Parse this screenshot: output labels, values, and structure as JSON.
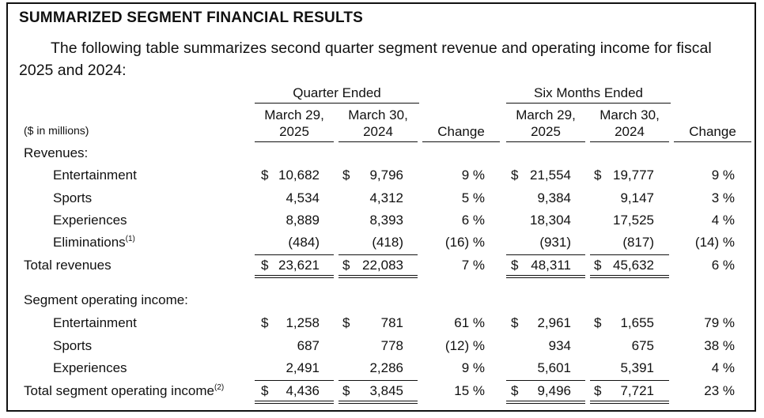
{
  "title": "SUMMARIZED SEGMENT FINANCIAL RESULTS",
  "intro": "The following table summarizes second quarter segment revenue and operating income for fiscal 2025 and 2024:",
  "units_label": "($ in millions)",
  "groups": {
    "quarter": "Quarter Ended",
    "six_months": "Six Months Ended"
  },
  "columns": {
    "q_2025_line1": "March 29,",
    "q_2025_line2": "2025",
    "q_2024_line1": "March 30,",
    "q_2024_line2": "2024",
    "q_change": "Change",
    "s_2025_line1": "March 29,",
    "s_2025_line2": "2025",
    "s_2024_line1": "March 30,",
    "s_2024_line2": "2024",
    "s_change": "Change"
  },
  "currency_symbol": "$",
  "revenues": {
    "heading": "Revenues:",
    "rows": [
      {
        "label": "Entertainment",
        "sup": "",
        "q25": "10,682",
        "q24": "9,796",
        "qc": "9 %",
        "s25": "21,554",
        "s24": "19,777",
        "sc": "9 %"
      },
      {
        "label": "Sports",
        "sup": "",
        "q25": "4,534",
        "q24": "4,312",
        "qc": "5 %",
        "s25": "9,384",
        "s24": "9,147",
        "sc": "3 %"
      },
      {
        "label": "Experiences",
        "sup": "",
        "q25": "8,889",
        "q24": "8,393",
        "qc": "6 %",
        "s25": "18,304",
        "s24": "17,525",
        "sc": "4 %"
      },
      {
        "label": "Eliminations",
        "sup": "(1)",
        "q25": "(484)",
        "q24": "(418)",
        "qc": "(16) %",
        "s25": "(931)",
        "s24": "(817)",
        "sc": "(14) %"
      }
    ],
    "total": {
      "label": "Total revenues",
      "sup": "",
      "q25": "23,621",
      "q24": "22,083",
      "qc": "7 %",
      "s25": "48,311",
      "s24": "45,632",
      "sc": "6 %"
    }
  },
  "operating_income": {
    "heading": "Segment operating income:",
    "rows": [
      {
        "label": "Entertainment",
        "sup": "",
        "q25": "1,258",
        "q24": "781",
        "qc": "61 %",
        "s25": "2,961",
        "s24": "1,655",
        "sc": "79 %"
      },
      {
        "label": "Sports",
        "sup": "",
        "q25": "687",
        "q24": "778",
        "qc": "(12) %",
        "s25": "934",
        "s24": "675",
        "sc": "38 %"
      },
      {
        "label": "Experiences",
        "sup": "",
        "q25": "2,491",
        "q24": "2,286",
        "qc": "9 %",
        "s25": "5,601",
        "s24": "5,391",
        "sc": "4 %"
      }
    ],
    "total": {
      "label": "Total segment operating income",
      "sup": "(2)",
      "q25": "4,436",
      "q24": "3,845",
      "qc": "15 %",
      "s25": "9,496",
      "s24": "7,721",
      "sc": "23 %"
    }
  }
}
